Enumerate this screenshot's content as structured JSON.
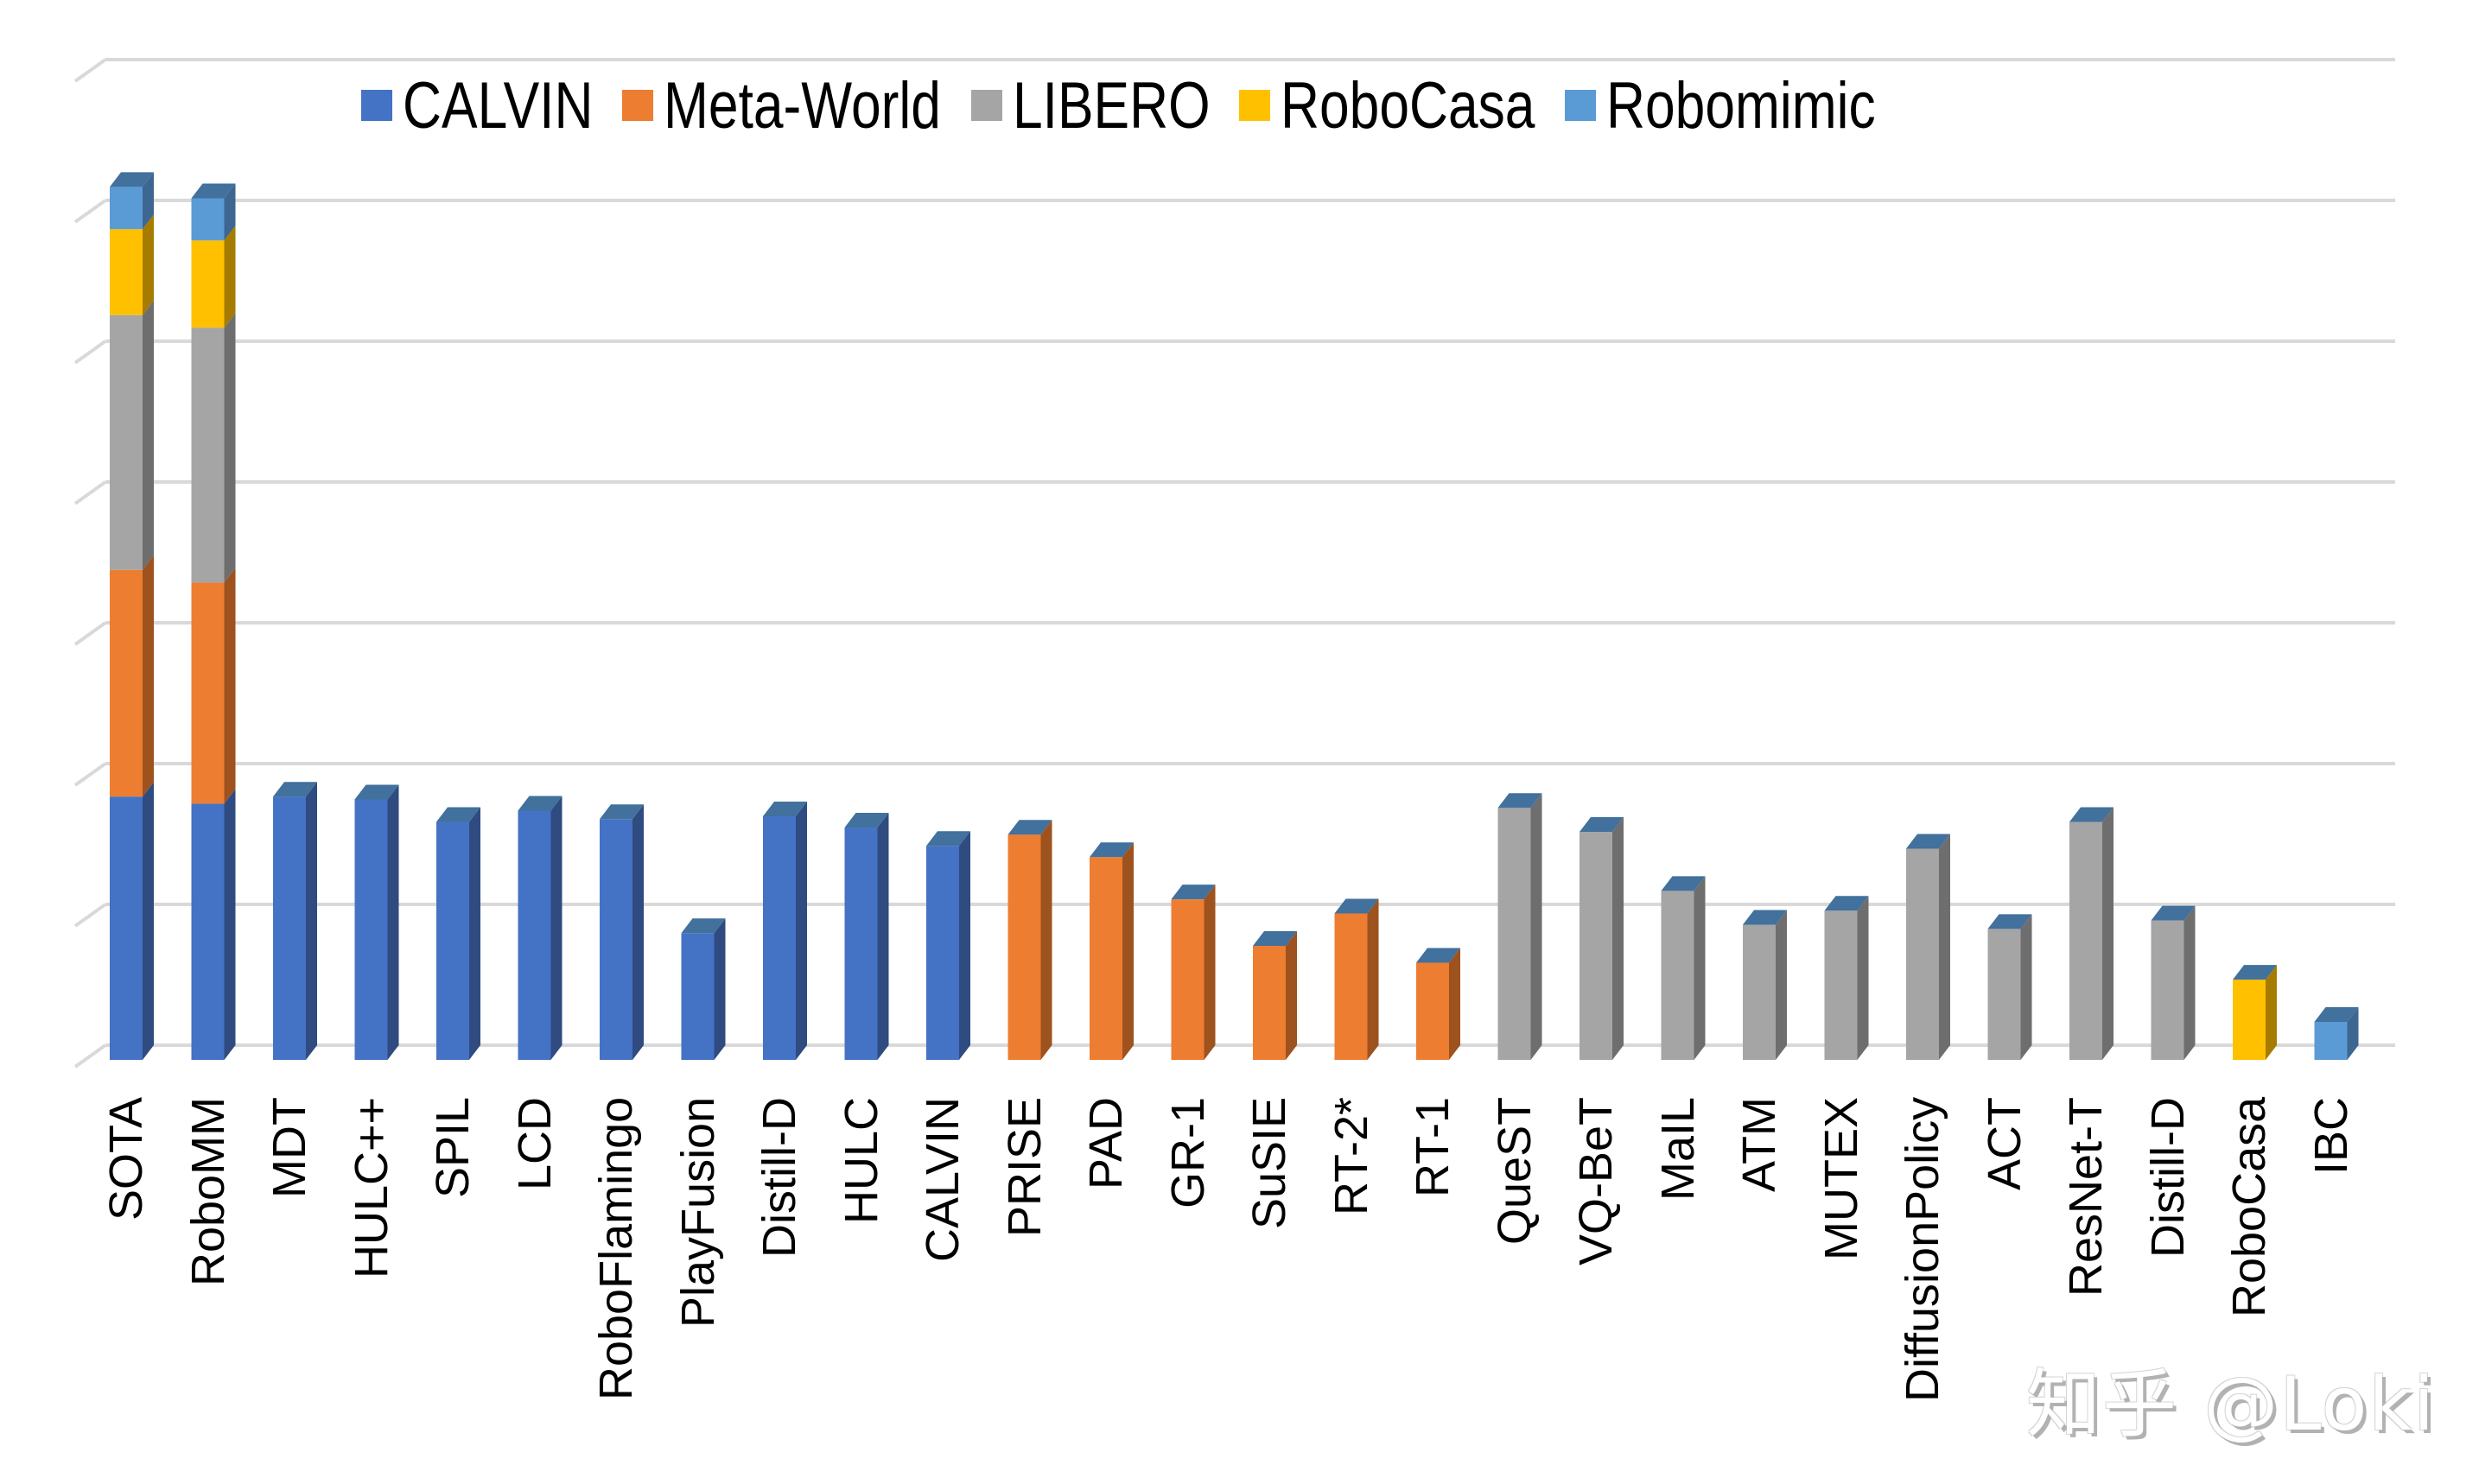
{
  "chart_data": {
    "type": "bar",
    "subtype": "stacked-3d-column",
    "title": "",
    "xlabel": "",
    "ylabel": "",
    "y_tick_labels_visible": false,
    "grid": true,
    "gridline_count": 8,
    "ylim_grid_units": [
      0,
      7
    ],
    "legend_position": "top",
    "legend": [
      {
        "name": "CALVIN",
        "color": "#4472C4"
      },
      {
        "name": "Meta-World",
        "color": "#ED7D31"
      },
      {
        "name": "LIBERO",
        "color": "#A5A5A5"
      },
      {
        "name": "RoboCasa",
        "color": "#FFC000"
      },
      {
        "name": "Robomimic",
        "color": "#5B9BD5"
      }
    ],
    "categories": [
      "SOTA",
      "RoboMM",
      "MDT",
      "HULC++",
      "SPIL",
      "LCD",
      "RoboFlamingo",
      "PlayFusion",
      "Distill-D",
      "HULC",
      "CALVIN",
      "PRISE",
      "PAD",
      "GR-1",
      "SuSIE",
      "RT-2*",
      "RT-1",
      "QueST",
      "VQ-BeT",
      "MaIL",
      "ATM",
      "MUTEX",
      "DiffusionPolicy",
      "ACT",
      "ResNet-T",
      "Distill-D",
      "RoboCasa",
      "IBC"
    ],
    "series": [
      {
        "name": "CALVIN",
        "values": [
          1.87,
          1.82,
          1.87,
          1.85,
          1.69,
          1.77,
          1.71,
          0.9,
          1.73,
          1.65,
          1.52,
          0,
          0,
          0,
          0,
          0,
          0,
          0,
          0,
          0,
          0,
          0,
          0,
          0,
          0,
          0,
          0,
          0
        ]
      },
      {
        "name": "Meta-World",
        "values": [
          1.61,
          1.57,
          0,
          0,
          0,
          0,
          0,
          0,
          0,
          0,
          0,
          1.6,
          1.44,
          1.14,
          0.81,
          1.04,
          0.69,
          0,
          0,
          0,
          0,
          0,
          0,
          0,
          0,
          0,
          0,
          0
        ]
      },
      {
        "name": "LIBERO",
        "values": [
          1.81,
          1.81,
          0,
          0,
          0,
          0,
          0,
          0,
          0,
          0,
          0,
          0,
          0,
          0,
          0,
          0,
          0,
          1.79,
          1.62,
          1.2,
          0.96,
          1.06,
          1.5,
          0.93,
          1.69,
          0.99,
          0,
          0
        ]
      },
      {
        "name": "RoboCasa",
        "values": [
          0.61,
          0.62,
          0,
          0,
          0,
          0,
          0,
          0,
          0,
          0,
          0,
          0,
          0,
          0,
          0,
          0,
          0,
          0,
          0,
          0,
          0,
          0,
          0,
          0,
          0,
          0,
          0.57,
          0
        ]
      },
      {
        "name": "Robomimic",
        "values": [
          0.3,
          0.3,
          0,
          0,
          0,
          0,
          0,
          0,
          0,
          0,
          0,
          0,
          0,
          0,
          0,
          0,
          0,
          0,
          0,
          0,
          0,
          0,
          0,
          0,
          0,
          0,
          0,
          0.27
        ]
      }
    ],
    "units_note": "values in gridline units (no y-axis tick labels shown)"
  },
  "colors": {
    "side": {
      "CALVIN": "#2F4B80",
      "Meta-World": "#9E521E",
      "LIBERO": "#6E6E6E",
      "RoboCasa": "#A67C00",
      "Robomimic": "#3D6690"
    },
    "top": "#41719C",
    "grid": "#D9D9D9"
  },
  "watermark": "知乎 @Loki"
}
